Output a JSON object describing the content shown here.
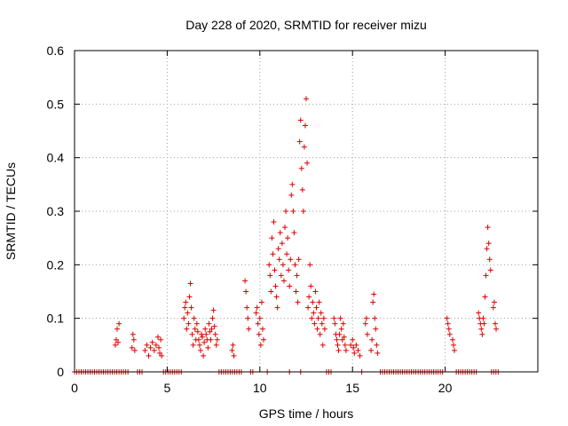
{
  "chart_data": {
    "type": "scatter",
    "title": "Day 228 of 2020, SRMTID for receiver mizu",
    "xlabel": "GPS time / hours",
    "ylabel": "SRMTID / TECUs",
    "xlim": [
      0,
      25
    ],
    "ylim": [
      0,
      0.6
    ],
    "xticks": [
      0,
      5,
      10,
      15,
      20
    ],
    "xtick_labels": [
      "0",
      "5",
      "10",
      "15",
      "20"
    ],
    "yticks": [
      0,
      0.1,
      0.2,
      0.3,
      0.4,
      0.5,
      0.6
    ],
    "ytick_labels": [
      "0",
      "0.1",
      "0.2",
      "0.3",
      "0.4",
      "0.5",
      "0.6"
    ],
    "grid": true,
    "marker": "+",
    "color": "#dd0000",
    "series": [
      {
        "name": "SRMTID",
        "points": [
          [
            2.2,
            0.05
          ],
          [
            2.25,
            0.06
          ],
          [
            2.3,
            0.08
          ],
          [
            2.35,
            0.055
          ],
          [
            2.4,
            0.09
          ],
          [
            3.1,
            0.045
          ],
          [
            3.15,
            0.07
          ],
          [
            3.2,
            0.06
          ],
          [
            3.25,
            0.04
          ],
          [
            3.8,
            0.04
          ],
          [
            3.9,
            0.05
          ],
          [
            4.0,
            0.03
          ],
          [
            4.1,
            0.045
          ],
          [
            4.2,
            0.055
          ],
          [
            4.3,
            0.04
          ],
          [
            4.4,
            0.05
          ],
          [
            4.5,
            0.065
          ],
          [
            4.55,
            0.045
          ],
          [
            4.6,
            0.035
          ],
          [
            4.65,
            0.06
          ],
          [
            4.7,
            0.03
          ],
          [
            5.9,
            0.1
          ],
          [
            5.95,
            0.12
          ],
          [
            6.0,
            0.13
          ],
          [
            6.05,
            0.08
          ],
          [
            6.1,
            0.11
          ],
          [
            6.15,
            0.09
          ],
          [
            6.2,
            0.14
          ],
          [
            6.25,
            0.165
          ],
          [
            6.3,
            0.12
          ],
          [
            6.35,
            0.07
          ],
          [
            6.4,
            0.05
          ],
          [
            6.45,
            0.1
          ],
          [
            6.5,
            0.08
          ],
          [
            6.55,
            0.06
          ],
          [
            6.6,
            0.09
          ],
          [
            6.65,
            0.075
          ],
          [
            6.7,
            0.06
          ],
          [
            6.75,
            0.05
          ],
          [
            6.8,
            0.04
          ],
          [
            6.85,
            0.07
          ],
          [
            6.9,
            0.065
          ],
          [
            6.95,
            0.03
          ],
          [
            7.0,
            0.055
          ],
          [
            7.05,
            0.08
          ],
          [
            7.1,
            0.07
          ],
          [
            7.15,
            0.06
          ],
          [
            7.2,
            0.045
          ],
          [
            7.25,
            0.09
          ],
          [
            7.3,
            0.075
          ],
          [
            7.35,
            0.06
          ],
          [
            7.4,
            0.08
          ],
          [
            7.45,
            0.1
          ],
          [
            7.5,
            0.115
          ],
          [
            7.55,
            0.085
          ],
          [
            7.6,
            0.07
          ],
          [
            7.65,
            0.05
          ],
          [
            7.7,
            0.06
          ],
          [
            8.5,
            0.04
          ],
          [
            8.55,
            0.05
          ],
          [
            8.6,
            0.03
          ],
          [
            9.2,
            0.17
          ],
          [
            9.25,
            0.15
          ],
          [
            9.3,
            0.12
          ],
          [
            9.35,
            0.1
          ],
          [
            9.4,
            0.08
          ],
          [
            9.8,
            0.11
          ],
          [
            9.85,
            0.12
          ],
          [
            9.9,
            0.09
          ],
          [
            9.95,
            0.07
          ],
          [
            10.0,
            0.1
          ],
          [
            10.05,
            0.05
          ],
          [
            10.1,
            0.13
          ],
          [
            10.15,
            0.08
          ],
          [
            10.2,
            0.06
          ],
          [
            10.5,
            0.2
          ],
          [
            10.55,
            0.18
          ],
          [
            10.6,
            0.15
          ],
          [
            10.65,
            0.25
          ],
          [
            10.7,
            0.22
          ],
          [
            10.75,
            0.28
          ],
          [
            10.8,
            0.19
          ],
          [
            10.85,
            0.16
          ],
          [
            10.9,
            0.14
          ],
          [
            10.95,
            0.12
          ],
          [
            11.0,
            0.23
          ],
          [
            11.05,
            0.21
          ],
          [
            11.1,
            0.26
          ],
          [
            11.15,
            0.18
          ],
          [
            11.2,
            0.24
          ],
          [
            11.25,
            0.2
          ],
          [
            11.3,
            0.17
          ],
          [
            11.35,
            0.27
          ],
          [
            11.4,
            0.3
          ],
          [
            11.45,
            0.22
          ],
          [
            11.5,
            0.25
          ],
          [
            11.55,
            0.19
          ],
          [
            11.6,
            0.16
          ],
          [
            11.65,
            0.21
          ],
          [
            11.7,
            0.33
          ],
          [
            11.75,
            0.35
          ],
          [
            11.8,
            0.3
          ],
          [
            11.85,
            0.26
          ],
          [
            11.9,
            0.2
          ],
          [
            11.95,
            0.15
          ],
          [
            12.0,
            0.18
          ],
          [
            12.05,
            0.13
          ],
          [
            12.1,
            0.21
          ],
          [
            12.15,
            0.43
          ],
          [
            12.2,
            0.47
          ],
          [
            12.25,
            0.38
          ],
          [
            12.3,
            0.34
          ],
          [
            12.35,
            0.3
          ],
          [
            12.4,
            0.42
          ],
          [
            12.45,
            0.46
          ],
          [
            12.5,
            0.51
          ],
          [
            12.55,
            0.39
          ],
          [
            12.6,
            0.12
          ],
          [
            12.65,
            0.14
          ],
          [
            12.7,
            0.2
          ],
          [
            12.75,
            0.16
          ],
          [
            12.8,
            0.1
          ],
          [
            12.85,
            0.13
          ],
          [
            12.9,
            0.11
          ],
          [
            12.95,
            0.09
          ],
          [
            13.0,
            0.15
          ],
          [
            13.05,
            0.12
          ],
          [
            13.1,
            0.08
          ],
          [
            13.15,
            0.1
          ],
          [
            13.2,
            0.13
          ],
          [
            13.25,
            0.07
          ],
          [
            13.3,
            0.11
          ],
          [
            13.35,
            0.09
          ],
          [
            13.4,
            0.05
          ],
          [
            13.45,
            0.1
          ],
          [
            13.5,
            0.08
          ],
          [
            14.0,
            0.1
          ],
          [
            14.05,
            0.09
          ],
          [
            14.1,
            0.07
          ],
          [
            14.15,
            0.06
          ],
          [
            14.2,
            0.05
          ],
          [
            14.25,
            0.04
          ],
          [
            14.3,
            0.07
          ],
          [
            14.35,
            0.1
          ],
          [
            14.4,
            0.08
          ],
          [
            14.45,
            0.06
          ],
          [
            14.5,
            0.09
          ],
          [
            14.55,
            0.065
          ],
          [
            14.6,
            0.05
          ],
          [
            14.65,
            0.04
          ],
          [
            14.9,
            0.05
          ],
          [
            15.0,
            0.06
          ],
          [
            15.05,
            0.045
          ],
          [
            15.1,
            0.035
          ],
          [
            15.2,
            0.05
          ],
          [
            15.3,
            0.04
          ],
          [
            15.4,
            0.03
          ],
          [
            15.7,
            0.09
          ],
          [
            15.75,
            0.1
          ],
          [
            15.8,
            0.07
          ],
          [
            16.0,
            0.04
          ],
          [
            16.05,
            0.06
          ],
          [
            16.1,
            0.13
          ],
          [
            16.15,
            0.145
          ],
          [
            16.2,
            0.1
          ],
          [
            16.25,
            0.08
          ],
          [
            16.3,
            0.05
          ],
          [
            16.35,
            0.035
          ],
          [
            20.1,
            0.1
          ],
          [
            20.15,
            0.09
          ],
          [
            20.2,
            0.08
          ],
          [
            20.25,
            0.07
          ],
          [
            20.4,
            0.06
          ],
          [
            20.45,
            0.05
          ],
          [
            20.5,
            0.04
          ],
          [
            21.8,
            0.11
          ],
          [
            21.85,
            0.1
          ],
          [
            21.9,
            0.09
          ],
          [
            21.95,
            0.08
          ],
          [
            22.0,
            0.07
          ],
          [
            22.05,
            0.1
          ],
          [
            22.1,
            0.09
          ],
          [
            22.15,
            0.14
          ],
          [
            22.2,
            0.18
          ],
          [
            22.25,
            0.23
          ],
          [
            22.3,
            0.27
          ],
          [
            22.35,
            0.24
          ],
          [
            22.4,
            0.21
          ],
          [
            22.45,
            0.19
          ],
          [
            22.6,
            0.12
          ],
          [
            22.65,
            0.13
          ],
          [
            22.7,
            0.09
          ],
          [
            22.75,
            0.08
          ]
        ],
        "zero_segments": [
          [
            0.0,
            2.9
          ],
          [
            3.4,
            3.7
          ],
          [
            4.8,
            5.8
          ],
          [
            7.8,
            9.0
          ],
          [
            9.5,
            9.7
          ],
          [
            10.4,
            10.4
          ],
          [
            11.6,
            11.6
          ],
          [
            12.2,
            12.2
          ],
          [
            13.6,
            13.9
          ],
          [
            15.5,
            15.6
          ],
          [
            16.5,
            19.9
          ],
          [
            20.6,
            21.7
          ],
          [
            22.5,
            22.9
          ]
        ]
      }
    ]
  }
}
